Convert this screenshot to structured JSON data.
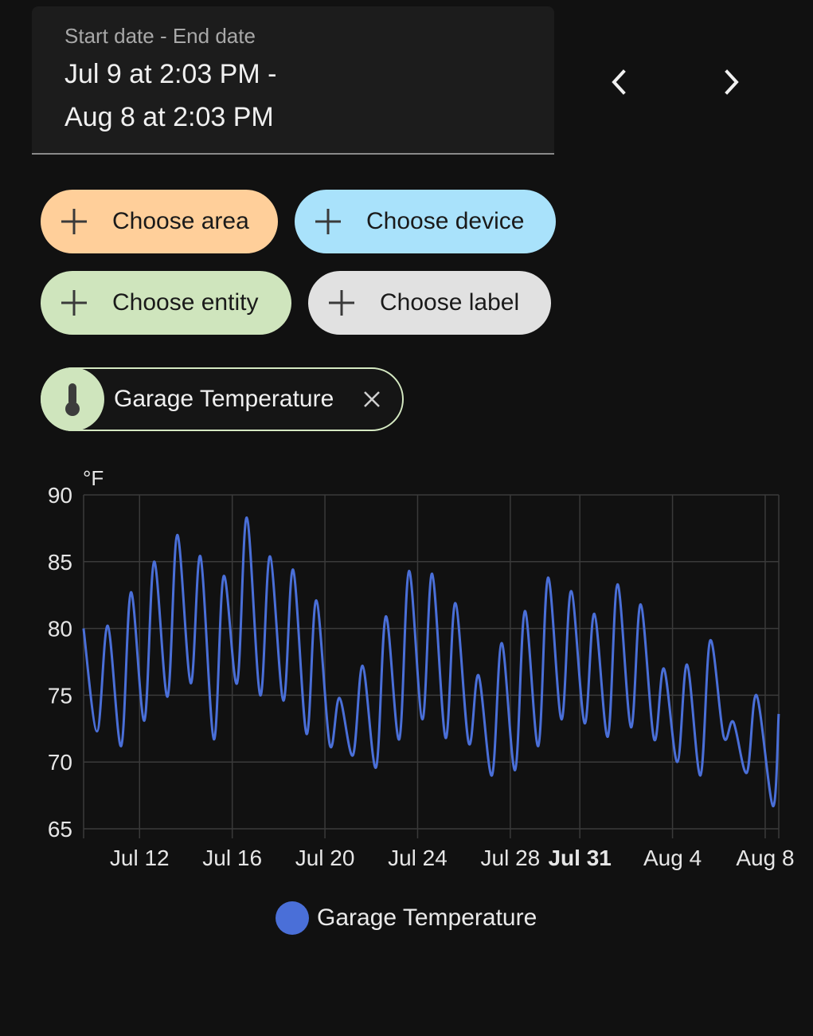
{
  "date_range": {
    "label": "Start date - End date",
    "line1": "Jul 9 at 2:03 PM -",
    "line2": "Aug 8 at 2:03 PM"
  },
  "navigation": {
    "prev_icon": "chevron-left-icon",
    "next_icon": "chevron-right-icon"
  },
  "target_chips": [
    {
      "label": "Choose area",
      "color": "#ffcf9a"
    },
    {
      "label": "Choose device",
      "color": "#a9e2fb"
    },
    {
      "label": "Choose entity",
      "color": "#cfe5bd"
    },
    {
      "label": "Choose label",
      "color": "#e1e1e1"
    }
  ],
  "selected_entity": {
    "name": "Garage Temperature",
    "icon": "thermometer-icon",
    "remove_icon": "close-icon"
  },
  "colors": {
    "background": "#111111",
    "line": "#4a6fd8",
    "grid": "#3a3a3a"
  },
  "chart_data": {
    "type": "line",
    "unit": "°F",
    "ylim": [
      65,
      90
    ],
    "yticks": [
      90,
      85,
      80,
      75,
      70,
      65
    ],
    "x_range": [
      "2024-07-09T14:03",
      "2024-08-08T14:03"
    ],
    "xticks": [
      {
        "date": "2024-07-12",
        "label": "Jul 12",
        "bold": false
      },
      {
        "date": "2024-07-16",
        "label": "Jul 16",
        "bold": false
      },
      {
        "date": "2024-07-20",
        "label": "Jul 20",
        "bold": false
      },
      {
        "date": "2024-07-24",
        "label": "Jul 24",
        "bold": false
      },
      {
        "date": "2024-07-28",
        "label": "Jul 28",
        "bold": false
      },
      {
        "date": "2024-07-31",
        "label": "Jul 31",
        "bold": true
      },
      {
        "date": "2024-08-04",
        "label": "Aug 4",
        "bold": false
      },
      {
        "date": "2024-08-08",
        "label": "Aug 8",
        "bold": false
      }
    ],
    "grid": true,
    "series": [
      {
        "name": "Garage Temperature",
        "color": "#4a6fd8",
        "points": [
          [
            "2024-07-09T14:00",
            80.0
          ],
          [
            "2024-07-10T04:00",
            72.3
          ],
          [
            "2024-07-10T15:00",
            80.2
          ],
          [
            "2024-07-11T05:00",
            71.2
          ],
          [
            "2024-07-11T15:00",
            82.7
          ],
          [
            "2024-07-12T05:00",
            73.1
          ],
          [
            "2024-07-12T15:00",
            85.0
          ],
          [
            "2024-07-13T05:00",
            74.9
          ],
          [
            "2024-07-13T15:00",
            87.0
          ],
          [
            "2024-07-14T05:00",
            75.9
          ],
          [
            "2024-07-14T15:00",
            85.4
          ],
          [
            "2024-07-15T05:00",
            71.7
          ],
          [
            "2024-07-15T15:00",
            83.9
          ],
          [
            "2024-07-16T05:00",
            75.9
          ],
          [
            "2024-07-16T15:00",
            88.3
          ],
          [
            "2024-07-17T05:00",
            75.0
          ],
          [
            "2024-07-17T15:00",
            85.4
          ],
          [
            "2024-07-18T05:00",
            74.6
          ],
          [
            "2024-07-18T15:00",
            84.4
          ],
          [
            "2024-07-19T05:00",
            72.1
          ],
          [
            "2024-07-19T15:00",
            82.1
          ],
          [
            "2024-07-20T05:00",
            71.3
          ],
          [
            "2024-07-20T15:00",
            74.8
          ],
          [
            "2024-07-21T05:00",
            70.5
          ],
          [
            "2024-07-21T15:00",
            77.2
          ],
          [
            "2024-07-22T05:00",
            69.6
          ],
          [
            "2024-07-22T15:00",
            80.9
          ],
          [
            "2024-07-23T05:00",
            71.7
          ],
          [
            "2024-07-23T15:00",
            84.3
          ],
          [
            "2024-07-24T05:00",
            73.2
          ],
          [
            "2024-07-24T15:00",
            84.1
          ],
          [
            "2024-07-25T05:00",
            71.8
          ],
          [
            "2024-07-25T15:00",
            81.9
          ],
          [
            "2024-07-26T05:00",
            71.4
          ],
          [
            "2024-07-26T15:00",
            76.5
          ],
          [
            "2024-07-27T05:00",
            69.0
          ],
          [
            "2024-07-27T15:00",
            78.9
          ],
          [
            "2024-07-28T05:00",
            69.4
          ],
          [
            "2024-07-28T15:00",
            81.3
          ],
          [
            "2024-07-29T05:00",
            71.2
          ],
          [
            "2024-07-29T15:00",
            83.8
          ],
          [
            "2024-07-30T05:00",
            73.2
          ],
          [
            "2024-07-30T15:00",
            82.8
          ],
          [
            "2024-07-31T05:00",
            72.9
          ],
          [
            "2024-07-31T15:00",
            81.1
          ],
          [
            "2024-08-01T05:00",
            71.9
          ],
          [
            "2024-08-01T15:00",
            83.3
          ],
          [
            "2024-08-02T05:00",
            72.6
          ],
          [
            "2024-08-02T15:00",
            81.8
          ],
          [
            "2024-08-03T05:00",
            71.7
          ],
          [
            "2024-08-03T15:00",
            77.0
          ],
          [
            "2024-08-04T05:00",
            70.0
          ],
          [
            "2024-08-04T15:00",
            77.3
          ],
          [
            "2024-08-05T05:00",
            69.0
          ],
          [
            "2024-08-05T15:00",
            79.1
          ],
          [
            "2024-08-06T05:00",
            71.9
          ],
          [
            "2024-08-06T15:00",
            73.0
          ],
          [
            "2024-08-07T05:00",
            69.2
          ],
          [
            "2024-08-07T15:00",
            75.0
          ],
          [
            "2024-08-08T08:00",
            66.7
          ],
          [
            "2024-08-08T14:00",
            73.6
          ]
        ]
      }
    ]
  }
}
